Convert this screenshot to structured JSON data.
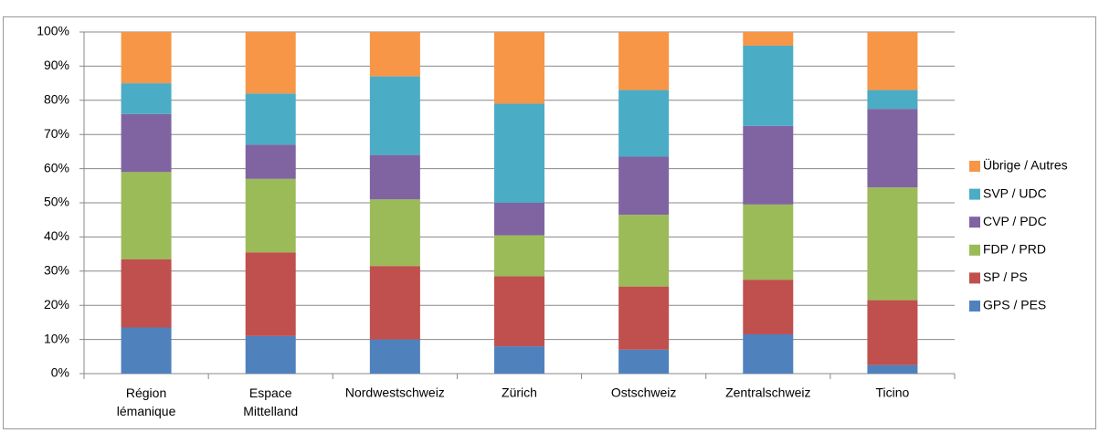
{
  "chart_data": {
    "type": "stacked_bar",
    "categories": [
      "Région lémanique",
      "Espace Mittelland",
      "Nordwestschweiz",
      "Zürich",
      "Ostschweiz",
      "Zentralschweiz",
      "Ticino"
    ],
    "series": [
      {
        "name": "GPS / PES",
        "color": "#4f81bd",
        "values": [
          13.5,
          11,
          10,
          8,
          7,
          11.5,
          2.5
        ]
      },
      {
        "name": "SP / PS",
        "color": "#c0504d",
        "values": [
          20,
          24.5,
          21.5,
          20.5,
          18.5,
          16,
          19
        ]
      },
      {
        "name": "FDP / PRD",
        "color": "#9bbb59",
        "values": [
          25.5,
          21.5,
          19.5,
          12,
          21,
          22,
          33
        ]
      },
      {
        "name": "CVP / PDC",
        "color": "#8064a2",
        "values": [
          17,
          10,
          13,
          9.5,
          17,
          23,
          23
        ]
      },
      {
        "name": "SVP / UDC",
        "color": "#4bacc6",
        "values": [
          9,
          15,
          23,
          29,
          19.5,
          23.5,
          5.5
        ]
      },
      {
        "name": "Übrige / Autres",
        "color": "#f79646",
        "values": [
          15,
          18,
          13,
          21,
          17,
          4,
          17
        ]
      }
    ],
    "ylim": [
      0,
      100
    ],
    "yticks": [
      {
        "value": 0,
        "label": "0%"
      },
      {
        "value": 10,
        "label": "10%"
      },
      {
        "value": 20,
        "label": "20%"
      },
      {
        "value": 30,
        "label": "30%"
      },
      {
        "value": 40,
        "label": "40%"
      },
      {
        "value": 50,
        "label": "50%"
      },
      {
        "value": 60,
        "label": "60%"
      },
      {
        "value": 70,
        "label": "70%"
      },
      {
        "value": 80,
        "label": "80%"
      },
      {
        "value": 90,
        "label": "90%"
      },
      {
        "value": 100,
        "label": "100%"
      }
    ],
    "grid": true,
    "legend": "right"
  }
}
